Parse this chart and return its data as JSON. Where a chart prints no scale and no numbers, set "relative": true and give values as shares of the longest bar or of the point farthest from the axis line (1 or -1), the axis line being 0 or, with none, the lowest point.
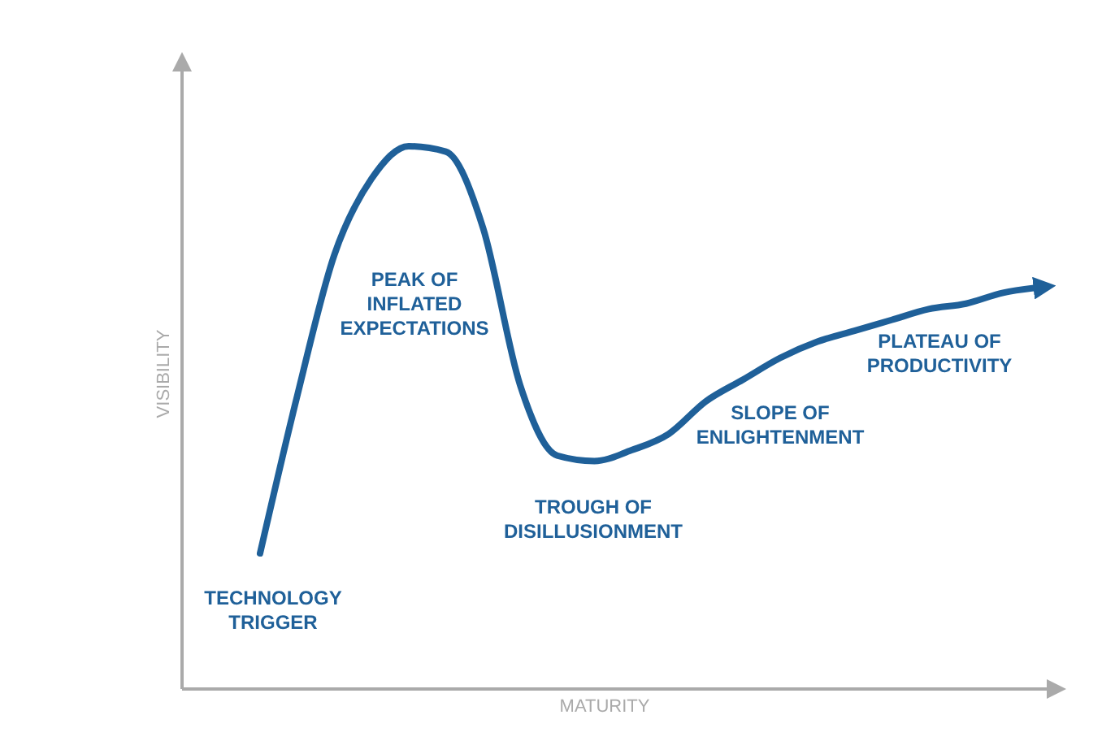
{
  "chart_data": {
    "type": "line",
    "relative": true,
    "xlabel": "MATURITY",
    "ylabel": "VISIBILITY",
    "categories": [
      null,
      null,
      null,
      null,
      null,
      null,
      null,
      null,
      null,
      null,
      null,
      null,
      null,
      null,
      null,
      null,
      null,
      null,
      null,
      null,
      null,
      null
    ],
    "series": [
      {
        "color": "#1f6099",
        "values": [
          0.25,
          0.54,
          0.8,
          0.94,
          1.0,
          0.99,
          0.85,
          0.56,
          0.43,
          0.42,
          0.44,
          0.47,
          0.53,
          0.57,
          0.61,
          0.64,
          0.66,
          0.68,
          0.7,
          0.71,
          0.73,
          0.74
        ]
      }
    ],
    "annotations": [
      "TECHNOLOGY\nTRIGGER",
      "PEAK OF\nINFLATED\nEXPECTATIONS",
      "TROUGH OF\nDISILLUSIONMENT",
      "SLOPE OF\nENLIGHTENMENT",
      "PLATEAU OF\nPRODUCTIVITY"
    ]
  }
}
